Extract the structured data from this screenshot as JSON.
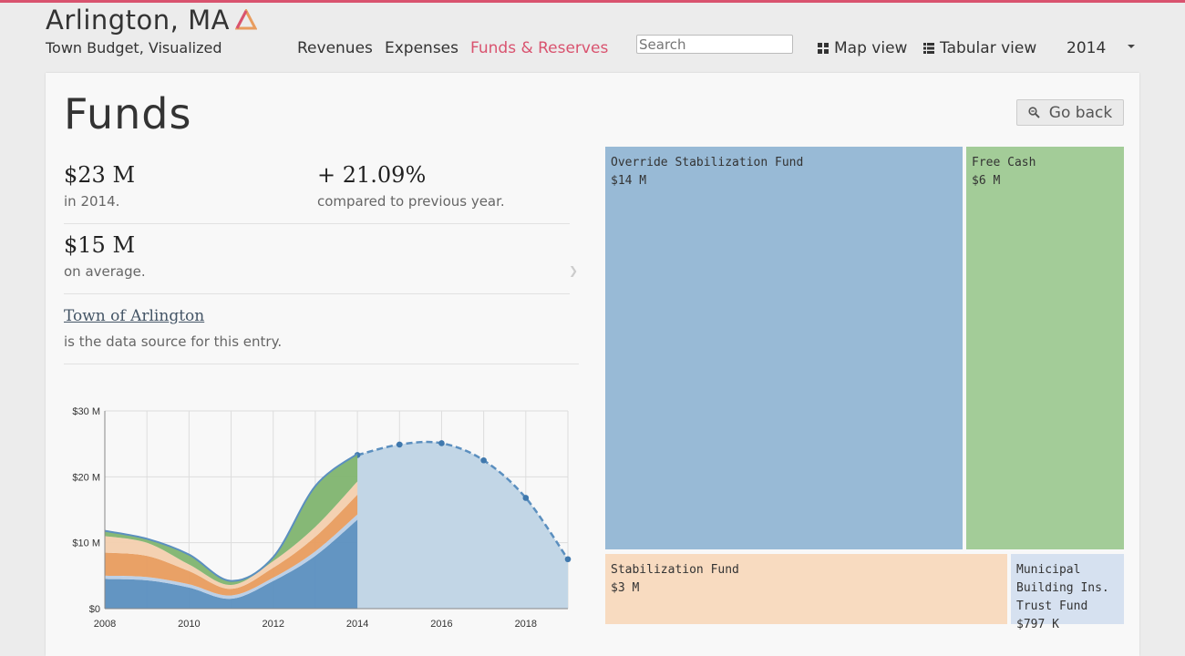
{
  "header": {
    "title": "Arlington, MA",
    "subtitle": "Town Budget, Visualized",
    "nav": [
      "Revenues",
      "Expenses",
      "Funds & Reserves"
    ],
    "active_nav": "Funds & Reserves",
    "search_placeholder": "Search",
    "map_view": "Map view",
    "tabular_view": "Tabular view",
    "year": "2014",
    "accent_color": "#d9536f"
  },
  "main": {
    "title": "Funds",
    "back_button": "Go back",
    "stats": {
      "total_value": "$23 M",
      "total_caption": "in 2014.",
      "change_value": "+ 21.09%",
      "change_caption": "compared to previous year.",
      "avg_value": "$15 M",
      "avg_caption": "on average.",
      "source_link": "Town of Arlington",
      "source_caption": "is the data source for this entry."
    }
  },
  "chart_data": {
    "type": "area",
    "x_ticks": [
      "2008",
      "2010",
      "2012",
      "2014",
      "2016",
      "2018"
    ],
    "y_ticks": [
      "$0",
      "$10 M",
      "$20 M",
      "$30 M"
    ],
    "ylim": [
      0,
      30
    ],
    "xlim": [
      2008,
      2019
    ],
    "grid": true,
    "series": [
      {
        "color": "#5b8fbf",
        "x": [
          2008,
          2009,
          2010,
          2011,
          2012,
          2013,
          2014
        ],
        "values": [
          4.5,
          4.3,
          3.2,
          1.5,
          4.2,
          8.0,
          13.5
        ]
      },
      {
        "color": "#b8cde6",
        "x": [
          2008,
          2009,
          2010,
          2011,
          2012,
          2013,
          2014
        ],
        "values": [
          0.5,
          0.5,
          0.5,
          0.5,
          0.5,
          0.7,
          0.8
        ]
      },
      {
        "color": "#e89c5e",
        "x": [
          2008,
          2009,
          2010,
          2011,
          2012,
          2013,
          2014
        ],
        "values": [
          3.5,
          3.2,
          2.0,
          1.0,
          1.5,
          2.2,
          3.0
        ]
      },
      {
        "color": "#f3cfae",
        "x": [
          2008,
          2009,
          2010,
          2011,
          2012,
          2013,
          2014
        ],
        "values": [
          2.5,
          2.0,
          1.0,
          0.6,
          1.0,
          1.5,
          2.0
        ]
      },
      {
        "color": "#7fb46f",
        "x": [
          2008,
          2009,
          2010,
          2011,
          2012,
          2013,
          2014
        ],
        "values": [
          0.8,
          0.6,
          1.5,
          0.6,
          0.6,
          6.2,
          4.2
        ]
      }
    ],
    "projection": {
      "color": "#5b8fbf",
      "x": [
        2014,
        2015,
        2016,
        2017,
        2018,
        2019
      ],
      "values": [
        23.3,
        24.9,
        25.1,
        22.5,
        16.8,
        7.5
      ]
    }
  },
  "treemap": [
    {
      "name": "Override Stabilization Fund",
      "value": "$14 M",
      "color": "#98bad6"
    },
    {
      "name": "Free Cash",
      "value": "$6 M",
      "color": "#a3cc98"
    },
    {
      "name": "Stabilization Fund",
      "value": "$3 M",
      "color": "#f8dbc0"
    },
    {
      "name": "Municipal Building Ins. Trust Fund",
      "value": "$797 K",
      "color": "#d6e1f0"
    }
  ]
}
